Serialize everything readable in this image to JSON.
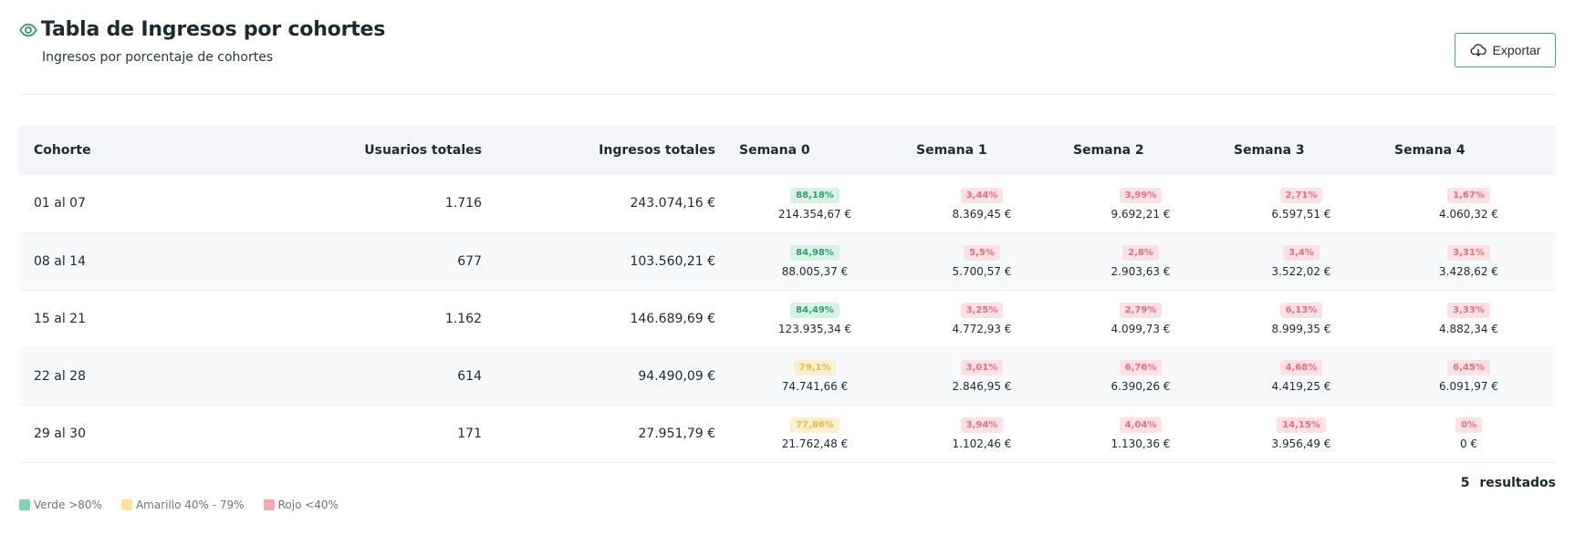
{
  "header": {
    "title": "Tabla de Ingresos por cohortes",
    "subtitle": "Ingresos por porcentaje de cohortes",
    "export_label": "Exportar"
  },
  "table": {
    "columns": [
      "Cohorte",
      "Usuarios totales",
      "Ingresos totales",
      "Semana 0",
      "Semana 1",
      "Semana 2",
      "Semana 3",
      "Semana 4"
    ],
    "rows": [
      {
        "cohort": "01 al 07",
        "users": "1.716",
        "revenue": "243.074,16 €",
        "weeks": [
          {
            "pct": "88,18%",
            "amount": "214.354,67 €",
            "level": "green"
          },
          {
            "pct": "3,44%",
            "amount": "8.369,45 €",
            "level": "red"
          },
          {
            "pct": "3,99%",
            "amount": "9.692,21 €",
            "level": "red"
          },
          {
            "pct": "2,71%",
            "amount": "6.597,51 €",
            "level": "red"
          },
          {
            "pct": "1,67%",
            "amount": "4.060,32 €",
            "level": "red"
          }
        ]
      },
      {
        "cohort": "08 al 14",
        "users": "677",
        "revenue": "103.560,21 €",
        "weeks": [
          {
            "pct": "84,98%",
            "amount": "88.005,37 €",
            "level": "green"
          },
          {
            "pct": "5,5%",
            "amount": "5.700,57 €",
            "level": "red"
          },
          {
            "pct": "2,8%",
            "amount": "2.903,63 €",
            "level": "red"
          },
          {
            "pct": "3,4%",
            "amount": "3.522,02 €",
            "level": "red"
          },
          {
            "pct": "3,31%",
            "amount": "3.428,62 €",
            "level": "red"
          }
        ]
      },
      {
        "cohort": "15 al 21",
        "users": "1.162",
        "revenue": "146.689,69 €",
        "weeks": [
          {
            "pct": "84,49%",
            "amount": "123.935,34 €",
            "level": "green"
          },
          {
            "pct": "3,25%",
            "amount": "4.772,93 €",
            "level": "red"
          },
          {
            "pct": "2,79%",
            "amount": "4.099,73 €",
            "level": "red"
          },
          {
            "pct": "6,13%",
            "amount": "8.999,35 €",
            "level": "red"
          },
          {
            "pct": "3,33%",
            "amount": "4.882,34 €",
            "level": "red"
          }
        ]
      },
      {
        "cohort": "22 al 28",
        "users": "614",
        "revenue": "94.490,09 €",
        "weeks": [
          {
            "pct": "79,1%",
            "amount": "74.741,66 €",
            "level": "yellow"
          },
          {
            "pct": "3,01%",
            "amount": "2.846,95 €",
            "level": "red"
          },
          {
            "pct": "6,76%",
            "amount": "6.390,26 €",
            "level": "red"
          },
          {
            "pct": "4,68%",
            "amount": "4.419,25 €",
            "level": "red"
          },
          {
            "pct": "6,45%",
            "amount": "6.091,97 €",
            "level": "red"
          }
        ]
      },
      {
        "cohort": "29 al 30",
        "users": "171",
        "revenue": "27.951,79 €",
        "weeks": [
          {
            "pct": "77,86%",
            "amount": "21.762,48 €",
            "level": "yellow"
          },
          {
            "pct": "3,94%",
            "amount": "1.102,46 €",
            "level": "red"
          },
          {
            "pct": "4,04%",
            "amount": "1.130,36 €",
            "level": "red"
          },
          {
            "pct": "14,15%",
            "amount": "3.956,49 €",
            "level": "red"
          },
          {
            "pct": "0%",
            "amount": "0 €",
            "level": "red"
          }
        ]
      }
    ]
  },
  "footer": {
    "results_count": "5",
    "results_label": "resultados"
  },
  "legend": [
    {
      "label": "Verde >80%",
      "color": "#7fd3b0"
    },
    {
      "label": "Amarillo 40% - 79%",
      "color": "#fde39a"
    },
    {
      "label": "Rojo <40%",
      "color": "#f6a7b3"
    }
  ],
  "colors": {
    "accent": "#3fa98a",
    "green_badge_bg": "#d8f3e6",
    "yellow_badge_bg": "#fdf0cf",
    "red_badge_bg": "#fde1e5"
  }
}
